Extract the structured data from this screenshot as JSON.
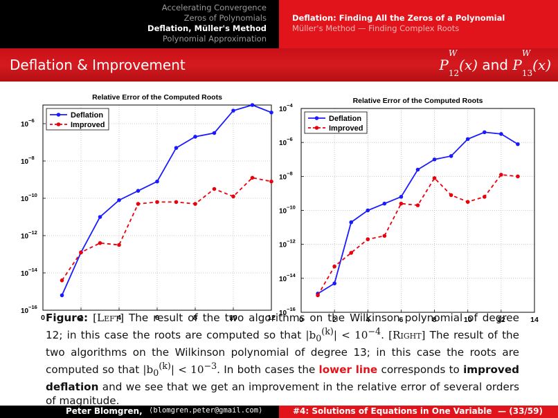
{
  "header": {
    "sections": [
      "Accelerating Convergence",
      "Zeros of Polynomials",
      "Deflation, Müller's Method",
      "Polynomial Approximation"
    ],
    "active_section": 2,
    "subsections": [
      "Deflation: Finding All the Zeros of a Polynomial",
      "Müller's Method — Finding Complex Roots"
    ],
    "active_subsection": 0
  },
  "frame": {
    "title": "Deflation & Improvement",
    "right_title": {
      "p": "P",
      "w": "W",
      "n1": "12",
      "x": "(x)",
      "and": "and",
      "n2": "13"
    }
  },
  "caption": {
    "label": "Figure:",
    "left": "[Left]",
    "p1": "The result of the two algorithms on the Wilkinson polynomial of degree 12; in this case the roots are computed so that",
    "m1": "|b",
    "m1sub": "0",
    "m1sup": "(k)",
    "m1tail": "| < 10",
    "m1exp": "−4",
    "right": "[Right]",
    "p2": "The result of the two algorithms on the Wilkinson polynomial of degree 13; in this case the roots are computed so that",
    "m2tail": "| < 10",
    "m2exp": "−3",
    "p3": ". In both cases the",
    "lower": "lower line",
    "p4": "corresponds to",
    "improved": "improved deflation",
    "p5": "and we see that we get an improvement in the relative error of several orders of magnitude."
  },
  "footer": {
    "author": "Peter Blomgren,",
    "email": "⟨blomgren.peter@gmail.com⟩",
    "lecture": "#4: Solutions of Equations in One Variable",
    "page": "— (33/59)"
  },
  "colors": {
    "deflation": "#1a1aff",
    "improved": "#e8000b",
    "bar_red": "#e2141b"
  },
  "chart_data": [
    {
      "type": "line",
      "title": "Relative Error of the Computed Roots",
      "xlim": [
        0,
        12
      ],
      "ylim_log10": [
        -16,
        -5
      ],
      "y_scale": "log",
      "x_ticks": [
        0,
        2,
        4,
        6,
        8,
        10,
        12
      ],
      "y_ticks_exp": [
        -16,
        -14,
        -12,
        -10,
        -8,
        -6
      ],
      "legend_position": "top-left",
      "grid": true,
      "series": [
        {
          "name": "Deflation",
          "style": "solid",
          "x": [
            1,
            2,
            3,
            4,
            5,
            6,
            7,
            8,
            9,
            10,
            11,
            12
          ],
          "log10y": [
            -15.2,
            -12.9,
            -11.0,
            -10.1,
            -9.6,
            -9.1,
            -7.3,
            -6.7,
            -6.5,
            -5.3,
            -5.0,
            -5.4
          ]
        },
        {
          "name": "Improved",
          "style": "dashed",
          "x": [
            1,
            2,
            3,
            4,
            5,
            6,
            7,
            8,
            9,
            10,
            11,
            12
          ],
          "log10y": [
            -14.4,
            -12.9,
            -12.4,
            -12.5,
            -10.3,
            -10.2,
            -10.2,
            -10.3,
            -9.5,
            -9.9,
            -8.9,
            -9.1
          ]
        }
      ]
    },
    {
      "type": "line",
      "title": "Relative Error of the Computed Roots",
      "xlim": [
        0,
        14
      ],
      "ylim_log10": [
        -16,
        -4
      ],
      "y_scale": "log",
      "x_ticks": [
        0,
        2,
        4,
        6,
        8,
        10,
        12,
        14
      ],
      "y_ticks_exp": [
        -16,
        -14,
        -12,
        -10,
        -8,
        -6,
        -4
      ],
      "legend_position": "top-left",
      "grid": true,
      "series": [
        {
          "name": "Deflation",
          "style": "solid",
          "x": [
            1,
            2,
            3,
            4,
            5,
            6,
            7,
            8,
            9,
            10,
            11,
            12,
            13
          ],
          "log10y": [
            -14.9,
            -14.3,
            -10.7,
            -10.0,
            -9.6,
            -9.2,
            -7.6,
            -7.0,
            -6.8,
            -5.8,
            -5.4,
            -5.5,
            -6.1
          ]
        },
        {
          "name": "Improved",
          "style": "dashed",
          "x": [
            1,
            2,
            3,
            4,
            5,
            6,
            7,
            8,
            9,
            10,
            11,
            12,
            13
          ],
          "log10y": [
            -15.0,
            -13.3,
            -12.5,
            -11.7,
            -11.5,
            -9.6,
            -9.7,
            -8.1,
            -9.1,
            -9.5,
            -9.2,
            -7.9,
            -8.0
          ]
        }
      ]
    }
  ]
}
